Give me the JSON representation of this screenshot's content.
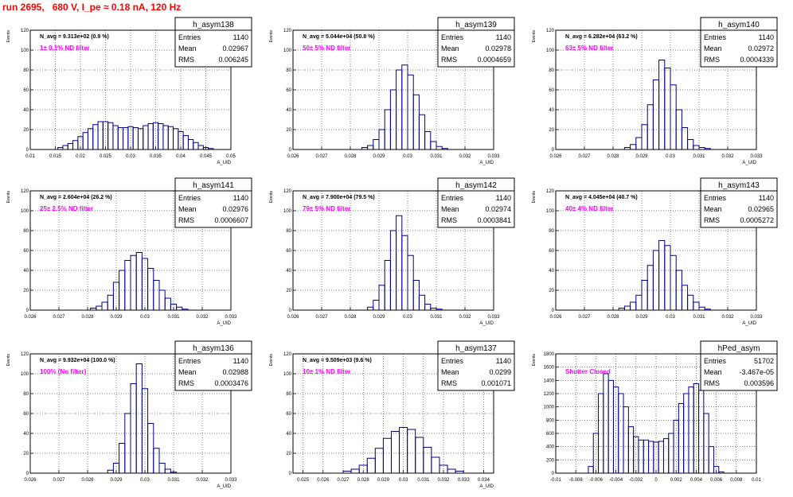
{
  "title": "run 2695,   680 V, I_pe ≈ 0.18 nA, 120 Hz",
  "colors": {
    "title": "#ff0000",
    "annotation": "#ff00ff",
    "histogram": "#00008b",
    "grid": "#000000"
  },
  "chart_data": [
    {
      "type": "histogram",
      "name": "h_asym138",
      "navg": "N_avg = 9.313e+02 (0.9 %)",
      "label": "1± 0.1% ND filter",
      "stats": {
        "entries": "1140",
        "mean": "0.02967",
        "rms": "0.006245"
      },
      "ylabel": "Events",
      "xlabel": "A_UID",
      "xlim": [
        0.01,
        0.05
      ],
      "ylim": [
        0,
        120
      ],
      "xticks": [
        "0.01",
        "0.015",
        "0.02",
        "0.025",
        "0.03",
        "0.035",
        "0.04",
        "0.045",
        "0.05"
      ],
      "yticks": [
        "0",
        "20",
        "40",
        "60",
        "80",
        "100",
        "120"
      ],
      "x": [
        0.016,
        0.017,
        0.018,
        0.019,
        0.02,
        0.021,
        0.022,
        0.023,
        0.024,
        0.025,
        0.026,
        0.027,
        0.028,
        0.029,
        0.03,
        0.031,
        0.032,
        0.033,
        0.034,
        0.035,
        0.036,
        0.037,
        0.038,
        0.039,
        0.04,
        0.041,
        0.042,
        0.043,
        0.044,
        0.045,
        0.046
      ],
      "values": [
        2,
        4,
        6,
        9,
        13,
        17,
        21,
        25,
        28,
        28,
        27,
        24,
        22,
        22,
        23,
        22,
        21,
        24,
        26,
        27,
        26,
        24,
        23,
        21,
        18,
        14,
        10,
        7,
        4,
        2,
        1
      ]
    },
    {
      "type": "histogram",
      "name": "h_asym139",
      "navg": "N_avg = 5.044e+04 (50.8 %)",
      "label": "50± 5% ND filter",
      "stats": {
        "entries": "1140",
        "mean": "0.02978",
        "rms": "0.0004659"
      },
      "ylabel": "Events",
      "xlabel": "A_UID",
      "xlim": [
        0.026,
        0.033
      ],
      "ylim": [
        0,
        120
      ],
      "xticks": [
        "0.026",
        "0.027",
        "0.028",
        "0.029",
        "0.03",
        "0.031",
        "0.032",
        "0.033"
      ],
      "yticks": [
        "0",
        "20",
        "40",
        "60",
        "80",
        "100",
        "120"
      ],
      "x": [
        0.0285,
        0.0287,
        0.0289,
        0.0291,
        0.0293,
        0.0295,
        0.0297,
        0.0299,
        0.0301,
        0.0303,
        0.0305,
        0.0307,
        0.0309,
        0.0311,
        0.0313
      ],
      "values": [
        2,
        4,
        10,
        20,
        40,
        60,
        80,
        85,
        75,
        55,
        35,
        18,
        8,
        3,
        1
      ]
    },
    {
      "type": "histogram",
      "name": "h_asym140",
      "navg": "N_avg = 6.282e+04 (63.2 %)",
      "label": "63± 5% ND filter",
      "stats": {
        "entries": "1140",
        "mean": "0.02972",
        "rms": "0.0004339"
      },
      "ylabel": "Events",
      "xlabel": "A_UID",
      "xlim": [
        0.026,
        0.033
      ],
      "ylim": [
        0,
        120
      ],
      "xticks": [
        "0.026",
        "0.027",
        "0.028",
        "0.029",
        "0.03",
        "0.031",
        "0.032",
        "0.033"
      ],
      "yticks": [
        "0",
        "20",
        "40",
        "60",
        "80",
        "100",
        "120"
      ],
      "x": [
        0.0285,
        0.0287,
        0.0289,
        0.0291,
        0.0293,
        0.0295,
        0.0297,
        0.0299,
        0.0301,
        0.0303,
        0.0305,
        0.0307,
        0.0309,
        0.0311,
        0.0313
      ],
      "values": [
        2,
        5,
        12,
        25,
        45,
        70,
        90,
        82,
        65,
        40,
        22,
        10,
        4,
        2,
        1
      ]
    },
    {
      "type": "histogram",
      "name": "h_asym141",
      "navg": "N_avg = 2.604e+04 (26.2 %)",
      "label": "25± 2.5% ND filter",
      "stats": {
        "entries": "1140",
        "mean": "0.02976",
        "rms": "0.0006607"
      },
      "ylabel": "Events",
      "xlabel": "A_UID",
      "xlim": [
        0.026,
        0.033
      ],
      "ylim": [
        0,
        120
      ],
      "xticks": [
        "0.026",
        "0.027",
        "0.028",
        "0.029",
        "0.03",
        "0.031",
        "0.032",
        "0.033"
      ],
      "yticks": [
        "0",
        "20",
        "40",
        "60",
        "80",
        "100",
        "120"
      ],
      "x": [
        0.0282,
        0.0284,
        0.0286,
        0.0288,
        0.029,
        0.0292,
        0.0294,
        0.0296,
        0.0298,
        0.03,
        0.0302,
        0.0304,
        0.0306,
        0.0308,
        0.031,
        0.0312,
        0.0314
      ],
      "values": [
        2,
        4,
        8,
        15,
        28,
        40,
        50,
        55,
        58,
        52,
        42,
        30,
        20,
        12,
        6,
        3,
        1
      ]
    },
    {
      "type": "histogram",
      "name": "h_asym142",
      "navg": "N_avg = 7.900e+04 (79.5 %)",
      "label": "79± 5% ND filter",
      "stats": {
        "entries": "1140",
        "mean": "0.02974",
        "rms": "0.0003841"
      },
      "ylabel": "Events",
      "xlabel": "A_UID",
      "xlim": [
        0.026,
        0.033
      ],
      "ylim": [
        0,
        120
      ],
      "xticks": [
        "0.026",
        "0.027",
        "0.028",
        "0.029",
        "0.03",
        "0.031",
        "0.032",
        "0.033"
      ],
      "yticks": [
        "0",
        "20",
        "40",
        "60",
        "80",
        "100",
        "120"
      ],
      "x": [
        0.0287,
        0.0289,
        0.0291,
        0.0293,
        0.0295,
        0.0297,
        0.0299,
        0.0301,
        0.0303,
        0.0305,
        0.0307,
        0.0309,
        0.0311
      ],
      "values": [
        3,
        10,
        25,
        50,
        80,
        95,
        75,
        55,
        30,
        15,
        6,
        2,
        1
      ]
    },
    {
      "type": "histogram",
      "name": "h_asym143",
      "navg": "N_avg = 4.045e+04 (40.7 %)",
      "label": "40± 4% ND filter",
      "stats": {
        "entries": "1140",
        "mean": "0.02965",
        "rms": "0.0005272"
      },
      "ylabel": "Events",
      "xlabel": "A_UID",
      "xlim": [
        0.026,
        0.033
      ],
      "ylim": [
        0,
        120
      ],
      "xticks": [
        "0.026",
        "0.027",
        "0.028",
        "0.029",
        "0.03",
        "0.031",
        "0.032",
        "0.033"
      ],
      "yticks": [
        "0",
        "20",
        "40",
        "60",
        "80",
        "100",
        "120"
      ],
      "x": [
        0.0283,
        0.0285,
        0.0287,
        0.0289,
        0.0291,
        0.0293,
        0.0295,
        0.0297,
        0.0299,
        0.0301,
        0.0303,
        0.0305,
        0.0307,
        0.0309,
        0.0311,
        0.0313
      ],
      "values": [
        2,
        4,
        8,
        15,
        30,
        45,
        60,
        70,
        65,
        55,
        40,
        25,
        15,
        8,
        3,
        1
      ]
    },
    {
      "type": "histogram",
      "name": "h_asym136",
      "navg": "N_avg = 9.932e+04 (100.0 %)",
      "label": "100% (No filter)",
      "stats": {
        "entries": "1140",
        "mean": "0.02988",
        "rms": "0.0003476"
      },
      "ylabel": "Events",
      "xlabel": "A_UID",
      "xlim": [
        0.026,
        0.033
      ],
      "ylim": [
        0,
        120
      ],
      "xticks": [
        "0.026",
        "0.027",
        "0.028",
        "0.029",
        "0.03",
        "0.031",
        "0.032",
        "0.033"
      ],
      "yticks": [
        "0",
        "20",
        "40",
        "60",
        "80",
        "100",
        "120"
      ],
      "x": [
        0.0288,
        0.029,
        0.0292,
        0.0294,
        0.0296,
        0.0298,
        0.03,
        0.0302,
        0.0304,
        0.0306,
        0.0308,
        0.031
      ],
      "values": [
        3,
        10,
        30,
        60,
        90,
        110,
        85,
        50,
        25,
        10,
        4,
        1
      ]
    },
    {
      "type": "histogram",
      "name": "h_asym137",
      "navg": "N_avg = 9.509e+03 (9.6 %)",
      "label": "10± 1% ND filter",
      "stats": {
        "entries": "1140",
        "mean": "0.0299",
        "rms": "0.001071"
      },
      "ylabel": "Events",
      "xlabel": "A_UID",
      "xlim": [
        0.0245,
        0.0345
      ],
      "ylim": [
        0,
        120
      ],
      "xticks": [
        "0.025",
        "0.026",
        "0.027",
        "0.028",
        "0.029",
        "0.03",
        "0.031",
        "0.032",
        "0.033",
        "0.034"
      ],
      "yticks": [
        "0",
        "20",
        "40",
        "60",
        "80",
        "100",
        "120"
      ],
      "x": [
        0.0272,
        0.0276,
        0.028,
        0.0284,
        0.0288,
        0.0292,
        0.0296,
        0.03,
        0.0304,
        0.0308,
        0.0312,
        0.0316,
        0.032,
        0.0324,
        0.0328
      ],
      "values": [
        2,
        4,
        8,
        15,
        25,
        35,
        42,
        46,
        44,
        36,
        26,
        16,
        8,
        4,
        2
      ]
    },
    {
      "type": "histogram",
      "name": "hPed_asym",
      "navg": "",
      "label": "Shutter Closed",
      "stats": {
        "entries": "51702",
        "mean": "-3.467e-05",
        "rms": "0.003596"
      },
      "ylabel": "Events",
      "xlabel": "",
      "xlim": [
        -0.01,
        0.01
      ],
      "ylim": [
        0,
        1800
      ],
      "xticks": [
        "-0.01",
        "-0.008",
        "-0.006",
        "-0.004",
        "-0.002",
        "0",
        "0.002",
        "0.004",
        "0.006",
        "0.008",
        "0.01"
      ],
      "yticks": [
        "0",
        "200",
        "400",
        "600",
        "800",
        "1000",
        "1200",
        "1400",
        "1600",
        "1800"
      ],
      "x": [
        -0.0065,
        -0.006,
        -0.0055,
        -0.005,
        -0.0045,
        -0.004,
        -0.0035,
        -0.003,
        -0.0025,
        -0.002,
        -0.0015,
        -0.001,
        -0.0005,
        0,
        0.0005,
        0.001,
        0.0015,
        0.002,
        0.0025,
        0.003,
        0.0035,
        0.004,
        0.0045,
        0.005,
        0.0055,
        0.006,
        0.0065
      ],
      "values": [
        100,
        600,
        1200,
        1500,
        1400,
        1300,
        1200,
        1000,
        700,
        550,
        500,
        500,
        480,
        470,
        480,
        520,
        600,
        800,
        1050,
        1200,
        1300,
        1350,
        1250,
        900,
        400,
        100,
        20
      ]
    }
  ]
}
